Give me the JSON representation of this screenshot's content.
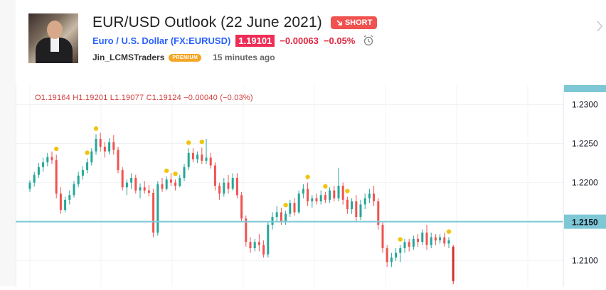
{
  "idea": {
    "title": "EUR/USD Outlook (22 June 2021)",
    "badge": "SHORT",
    "symbol_name": "Euro / U.S. Dollar",
    "symbol_code": "(FX:EURUSD)",
    "price": "1.19101",
    "change_abs": "−0.00063",
    "change_pct": "−0.05%",
    "author": "Jin_LCMSTraders",
    "author_tag": "PREMIUM",
    "published": "15 minutes ago"
  },
  "ohlc": {
    "o_label": "O",
    "o_value": "1.19164",
    "h_label": "H",
    "h_value": "1.19201",
    "l_label": "L",
    "l_value": "1.19077",
    "c_label": "C",
    "c_value": "1.19124",
    "change": "−0.00040 (−0.03%)"
  },
  "colors": {
    "up": "#26a69a",
    "down": "#ef5350",
    "down_dark": "#d32f2f",
    "level_line": "#7ec8d6",
    "pivot_dot": "#f1c40f",
    "badge": "#f0524f",
    "price_box": "#ef2d56",
    "link": "#2962ff"
  },
  "chart_data": {
    "type": "candlestick",
    "title": "",
    "xlabel": "",
    "ylabel": "",
    "ylim": [
      1.2067,
      1.2325
    ],
    "ticks": [
      "1.2300",
      "1.2250",
      "1.2200",
      "1.2150",
      "1.2100"
    ],
    "grid": true,
    "horizontal_level": 1.215,
    "horizontal_level_label": "1.2150",
    "candles": [
      [
        1.2192,
        1.2203,
        1.2188,
        1.22
      ],
      [
        1.22,
        1.2214,
        1.2195,
        1.221
      ],
      [
        1.221,
        1.2225,
        1.2206,
        1.222
      ],
      [
        1.222,
        1.2232,
        1.2214,
        1.2226
      ],
      [
        1.2226,
        1.2238,
        1.2221,
        1.2233
      ],
      [
        1.2233,
        1.224,
        1.2224,
        1.2229
      ],
      [
        1.2229,
        1.2236,
        1.218,
        1.2186
      ],
      [
        1.2186,
        1.2194,
        1.216,
        1.2165
      ],
      [
        1.2165,
        1.2182,
        1.2162,
        1.2178
      ],
      [
        1.2178,
        1.219,
        1.2172,
        1.2184
      ],
      [
        1.2184,
        1.2202,
        1.2181,
        1.2198
      ],
      [
        1.2198,
        1.2214,
        1.2194,
        1.2209
      ],
      [
        1.2209,
        1.2221,
        1.2204,
        1.2216
      ],
      [
        1.2216,
        1.2231,
        1.2212,
        1.2226
      ],
      [
        1.2226,
        1.2244,
        1.2222,
        1.224
      ],
      [
        1.224,
        1.2262,
        1.2236,
        1.2256
      ],
      [
        1.2256,
        1.2264,
        1.224,
        1.2246
      ],
      [
        1.2246,
        1.2252,
        1.2232,
        1.224
      ],
      [
        1.224,
        1.2257,
        1.2236,
        1.2252
      ],
      [
        1.2252,
        1.2261,
        1.2236,
        1.2242
      ],
      [
        1.2242,
        1.2246,
        1.2212,
        1.2216
      ],
      [
        1.2216,
        1.222,
        1.219,
        1.2194
      ],
      [
        1.2194,
        1.2204,
        1.2184,
        1.22
      ],
      [
        1.22,
        1.2212,
        1.2192,
        1.2206
      ],
      [
        1.2206,
        1.221,
        1.2186,
        1.219
      ],
      [
        1.219,
        1.2199,
        1.218,
        1.2194
      ],
      [
        1.2194,
        1.2202,
        1.2186,
        1.219
      ],
      [
        1.219,
        1.2197,
        1.2182,
        1.2187
      ],
      [
        1.2187,
        1.2192,
        1.213,
        1.2136
      ],
      [
        1.2136,
        1.2202,
        1.2132,
        1.2198
      ],
      [
        1.2198,
        1.2206,
        1.2188,
        1.2192
      ],
      [
        1.2192,
        1.2208,
        1.219,
        1.2204
      ],
      [
        1.2204,
        1.2212,
        1.2196,
        1.22
      ],
      [
        1.22,
        1.2204,
        1.219,
        1.2196
      ],
      [
        1.2196,
        1.221,
        1.2194,
        1.2206
      ],
      [
        1.2206,
        1.2224,
        1.2202,
        1.222
      ],
      [
        1.222,
        1.2244,
        1.2216,
        1.2238
      ],
      [
        1.2238,
        1.2244,
        1.2226,
        1.223
      ],
      [
        1.223,
        1.224,
        1.2225,
        1.2236
      ],
      [
        1.2236,
        1.2245,
        1.2224,
        1.2228
      ],
      [
        1.2228,
        1.2256,
        1.2224,
        1.2232
      ],
      [
        1.2232,
        1.2238,
        1.2218,
        1.2222
      ],
      [
        1.2222,
        1.2226,
        1.219,
        1.2196
      ],
      [
        1.2196,
        1.22,
        1.2178,
        1.2186
      ],
      [
        1.2186,
        1.2206,
        1.2182,
        1.22
      ],
      [
        1.22,
        1.221,
        1.2186,
        1.2192
      ],
      [
        1.2192,
        1.2212,
        1.219,
        1.2206
      ],
      [
        1.2206,
        1.2212,
        1.218,
        1.2184
      ],
      [
        1.2184,
        1.2188,
        1.215,
        1.2154
      ],
      [
        1.2154,
        1.2158,
        1.2118,
        1.2124
      ],
      [
        1.2124,
        1.213,
        1.211,
        1.2116
      ],
      [
        1.2116,
        1.2128,
        1.2112,
        1.2124
      ],
      [
        1.2124,
        1.2134,
        1.2112,
        1.212
      ],
      [
        1.212,
        1.2126,
        1.2104,
        1.2108
      ],
      [
        1.2108,
        1.215,
        1.2104,
        1.2146
      ],
      [
        1.2146,
        1.2162,
        1.214,
        1.2156
      ],
      [
        1.2156,
        1.217,
        1.215,
        1.2162
      ],
      [
        1.2162,
        1.2168,
        1.2146,
        1.215
      ],
      [
        1.215,
        1.2164,
        1.2146,
        1.216
      ],
      [
        1.216,
        1.2178,
        1.2156,
        1.2174
      ],
      [
        1.2174,
        1.218,
        1.2158,
        1.2162
      ],
      [
        1.2162,
        1.219,
        1.216,
        1.2186
      ],
      [
        1.2186,
        1.2198,
        1.218,
        1.2192
      ],
      [
        1.2192,
        1.22,
        1.217,
        1.2176
      ],
      [
        1.2176,
        1.2184,
        1.2168,
        1.218
      ],
      [
        1.218,
        1.2186,
        1.2172,
        1.2176
      ],
      [
        1.2176,
        1.219,
        1.2172,
        1.2184
      ],
      [
        1.2184,
        1.2188,
        1.2174,
        1.2178
      ],
      [
        1.2178,
        1.2194,
        1.2174,
        1.219
      ],
      [
        1.219,
        1.2196,
        1.2176,
        1.218
      ],
      [
        1.218,
        1.2219,
        1.2176,
        1.2196
      ],
      [
        1.2196,
        1.22,
        1.2172,
        1.2178
      ],
      [
        1.2178,
        1.2182,
        1.216,
        1.2166
      ],
      [
        1.2166,
        1.218,
        1.216,
        1.2176
      ],
      [
        1.2176,
        1.2184,
        1.215,
        1.2156
      ],
      [
        1.2156,
        1.2178,
        1.2152,
        1.2172
      ],
      [
        1.2172,
        1.2186,
        1.2166,
        1.218
      ],
      [
        1.218,
        1.2192,
        1.2174,
        1.2186
      ],
      [
        1.2186,
        1.2196,
        1.217,
        1.2176
      ],
      [
        1.2176,
        1.218,
        1.214,
        1.2146
      ],
      [
        1.2146,
        1.215,
        1.211,
        1.2116
      ],
      [
        1.2116,
        1.212,
        1.2092,
        1.2098
      ],
      [
        1.2098,
        1.211,
        1.2092,
        1.2104
      ],
      [
        1.2104,
        1.2116,
        1.21,
        1.211
      ],
      [
        1.211,
        1.212,
        1.2098,
        1.2116
      ],
      [
        1.2116,
        1.2128,
        1.211,
        1.2124
      ],
      [
        1.2124,
        1.2128,
        1.2112,
        1.2118
      ],
      [
        1.2118,
        1.2132,
        1.2114,
        1.2128
      ],
      [
        1.2128,
        1.2134,
        1.2118,
        1.2124
      ],
      [
        1.2124,
        1.214,
        1.212,
        1.2136
      ],
      [
        1.2136,
        1.2146,
        1.2114,
        1.212
      ],
      [
        1.212,
        1.2136,
        1.2116,
        1.213
      ],
      [
        1.213,
        1.2134,
        1.212,
        1.2126
      ],
      [
        1.2126,
        1.2134,
        1.2122,
        1.213
      ],
      [
        1.213,
        1.2136,
        1.2118,
        1.2122
      ],
      [
        1.2122,
        1.213,
        1.2116,
        1.2126
      ],
      [
        1.2118,
        1.212,
        1.207,
        1.2074
      ]
    ],
    "pivot_markers": [
      6,
      13,
      15,
      31,
      33,
      36,
      39,
      58,
      63,
      67,
      72,
      84,
      95
    ]
  }
}
